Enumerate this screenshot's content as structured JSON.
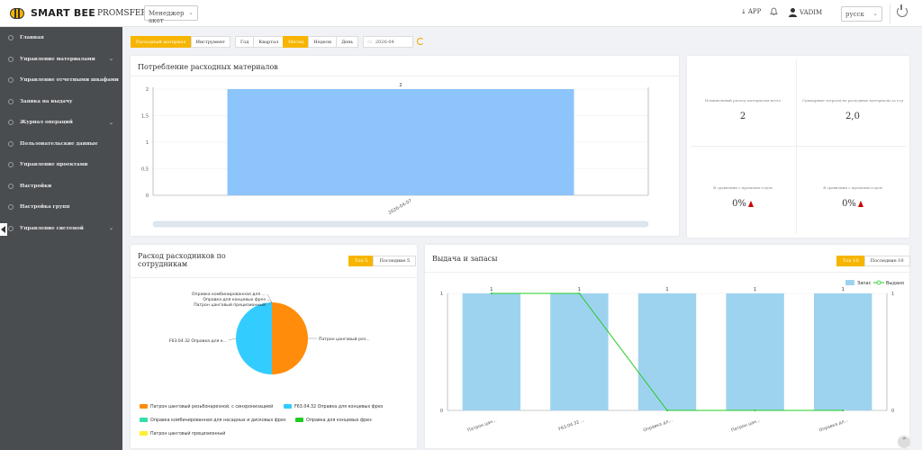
{
  "header": {
    "logo_text": "SMART BEE",
    "company": "PROMSFERA",
    "role_select": "Менеджер акот",
    "app_label": "APP",
    "user_name": "VADIM",
    "language": "русск"
  },
  "sidebar": {
    "items": [
      {
        "label": "Главная",
        "has_children": false
      },
      {
        "label": "Управление материалами",
        "has_children": true
      },
      {
        "label": "Управление отчетными шкафами",
        "has_children": false
      },
      {
        "label": "Заявка на выдачу",
        "has_children": false
      },
      {
        "label": "Журнал операций",
        "has_children": true
      },
      {
        "label": "Пользовательские данные",
        "has_children": false
      },
      {
        "label": "Управление проектами",
        "has_children": false
      },
      {
        "label": "Настройки",
        "has_children": false
      },
      {
        "label": "Настройка групп",
        "has_children": false
      },
      {
        "label": "Управление системой",
        "has_children": true
      }
    ]
  },
  "filters": {
    "buttons": [
      "Расходный материал",
      "Инструмент",
      "Год",
      "Квартал",
      "Месяц",
      "Неделя",
      "День"
    ],
    "active": [
      "Расходный материал",
      "Месяц"
    ],
    "date": "2026-04"
  },
  "consumption_card": {
    "title": "Потребление расходных материалов"
  },
  "stats": [
    {
      "label": "Номинальный расход материалов всего",
      "value": "2"
    },
    {
      "label": "Суммарные затраты на расходные материалы за год",
      "value": "2,0"
    },
    {
      "label": "В сравнении с прошлым годом",
      "value": "0%",
      "trend": "up"
    },
    {
      "label": "В сравнении с прошлым годом",
      "value": "0%",
      "trend": "up"
    }
  ],
  "employees_card": {
    "title": "Расход расходников по сотрудникам",
    "toggle": [
      "Топ 5",
      "Последние 5"
    ]
  },
  "issue_card": {
    "title": "Выдача и запасы",
    "toggle": [
      "Топ 10",
      "Последние 10"
    ]
  },
  "colors": {
    "accent": "#f7b500",
    "sidebar": "#4a4d50",
    "bar_blue": "#8cc4fb",
    "stock_bar": "#9ed3f0",
    "issued_line": "#22cc22",
    "pie_orange": "#ff8c0a",
    "pie_cyan": "#33ccff"
  },
  "chart_data": [
    {
      "type": "bar",
      "categories": [
        "2026-04-07"
      ],
      "values": [
        2
      ],
      "data_labels": [
        "2"
      ],
      "yticks": [
        "0",
        "0,5",
        "1",
        "1,5",
        "2"
      ],
      "ylim": [
        0,
        2
      ]
    },
    {
      "type": "pie",
      "labels": [
        "Патрон цанговый резьбонарезной, с синхронизацией",
        "F63.04.32 Оправка для концевых фрез",
        "Оправка комбинированная для насадных и дисковых фрез",
        "Оправка для концевых фрез",
        "Патрон цанговый прецизионный"
      ],
      "values": [
        1,
        1,
        0,
        0,
        0
      ],
      "colors": [
        "#ff8c0a",
        "#33ccff",
        "#33ddaa",
        "#22cc22",
        "#ffee33"
      ],
      "slice_labels": [
        "Патрон цанговый рез...",
        "F63.04.32 Оправка для к...",
        "Оправка комбинированная для ...",
        "Оправка для концевых фрез",
        "Патрон цанговый прецизионный"
      ],
      "legend_position": "bottom"
    },
    {
      "type": "bar",
      "categories": [
        "Патрон цан...",
        "F63.04.32 ...",
        "Оправка дл...",
        "Патрон цан...",
        "Оправка дл..."
      ],
      "series": [
        {
          "name": "Запас",
          "type": "bar",
          "values": [
            1,
            1,
            1,
            1,
            1
          ]
        },
        {
          "name": "Выдано",
          "type": "line",
          "values": [
            1,
            1,
            0,
            0,
            0
          ]
        }
      ],
      "data_labels": [
        "1",
        "1",
        "1",
        "1",
        "1"
      ],
      "yticks_left": [
        "0",
        "1"
      ],
      "yticks_right": [
        "0",
        "1"
      ],
      "ylim": [
        0,
        1
      ],
      "legend_position": "top-right"
    }
  ]
}
